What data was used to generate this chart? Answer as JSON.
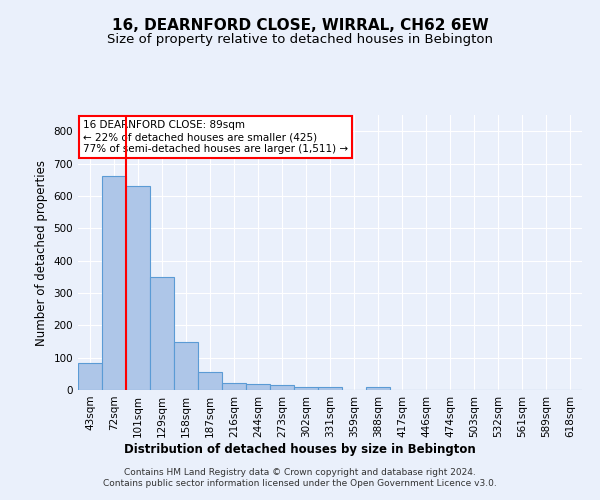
{
  "title": "16, DEARNFORD CLOSE, WIRRAL, CH62 6EW",
  "subtitle": "Size of property relative to detached houses in Bebington",
  "xlabel": "Distribution of detached houses by size in Bebington",
  "ylabel": "Number of detached properties",
  "categories": [
    "43sqm",
    "72sqm",
    "101sqm",
    "129sqm",
    "158sqm",
    "187sqm",
    "216sqm",
    "244sqm",
    "273sqm",
    "302sqm",
    "331sqm",
    "359sqm",
    "388sqm",
    "417sqm",
    "446sqm",
    "474sqm",
    "503sqm",
    "532sqm",
    "561sqm",
    "589sqm",
    "618sqm"
  ],
  "values": [
    85,
    660,
    630,
    348,
    148,
    57,
    22,
    18,
    15,
    10,
    8,
    0,
    8,
    0,
    0,
    0,
    0,
    0,
    0,
    0,
    0
  ],
  "bar_color": "#aec6e8",
  "bar_edge_color": "#5b9bd5",
  "red_line_x": 1.5,
  "ylim": [
    0,
    850
  ],
  "yticks": [
    0,
    100,
    200,
    300,
    400,
    500,
    600,
    700,
    800
  ],
  "annotation_title": "16 DEARNFORD CLOSE: 89sqm",
  "annotation_line1": "← 22% of detached houses are smaller (425)",
  "annotation_line2": "77% of semi-detached houses are larger (1,511) →",
  "footer1": "Contains HM Land Registry data © Crown copyright and database right 2024.",
  "footer2": "Contains public sector information licensed under the Open Government Licence v3.0.",
  "bg_color": "#eaf0fb",
  "plot_bg_color": "#eaf0fb",
  "grid_color": "#ffffff",
  "title_fontsize": 11,
  "subtitle_fontsize": 9.5,
  "axis_label_fontsize": 8.5,
  "tick_fontsize": 7.5,
  "footer_fontsize": 6.5
}
